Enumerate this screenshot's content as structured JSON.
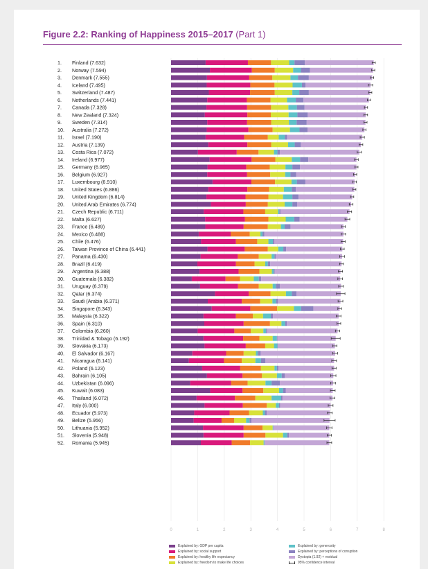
{
  "figure": {
    "title_main": "Figure 2.2: Ranking of Happiness 2015–2017",
    "title_part": "(Part 1)"
  },
  "chart_data": {
    "type": "bar",
    "orientation": "horizontal",
    "stacked": true,
    "xlim": [
      0,
      8
    ],
    "x_ticks": [
      "0",
      "1",
      "2",
      "3",
      "4",
      "5",
      "6",
      "7",
      "8"
    ],
    "grid": true,
    "legend_position": "bottom",
    "components": [
      {
        "name": "Explained by: GDP per capita",
        "color": "#7b3f8c"
      },
      {
        "name": "Explained by: social support",
        "color": "#d9197b"
      },
      {
        "name": "Explained by: healthy life expectancy",
        "color": "#f07b2a"
      },
      {
        "name": "Explained by: freedom to make life choices",
        "color": "#d8e13a"
      },
      {
        "name": "Explained by: generosity",
        "color": "#5ec1c8"
      },
      {
        "name": "Explained by: perceptions of corruption",
        "color": "#8b82c0"
      },
      {
        "name": "Dystopia (1.92) + residual",
        "color": "#c3a6d6"
      }
    ],
    "ci_legend": "95% confidence interval",
    "countries": [
      {
        "rank": "1.",
        "label": "Finland (7.632)",
        "segments": [
          1.3,
          1.59,
          0.87,
          0.68,
          0.2,
          0.39,
          2.59
        ],
        "ci": 0.06
      },
      {
        "rank": "2.",
        "label": "Norway (7.594)",
        "segments": [
          1.46,
          1.58,
          0.86,
          0.69,
          0.29,
          0.34,
          2.38
        ],
        "ci": 0.06
      },
      {
        "rank": "3.",
        "label": "Denmark (7.555)",
        "segments": [
          1.35,
          1.59,
          0.87,
          0.68,
          0.28,
          0.41,
          2.38
        ],
        "ci": 0.06
      },
      {
        "rank": "4.",
        "label": "Iceland (7.495)",
        "segments": [
          1.34,
          1.64,
          0.91,
          0.68,
          0.35,
          0.14,
          2.44
        ],
        "ci": 0.08
      },
      {
        "rank": "5.",
        "label": "Switzerland (7.487)",
        "segments": [
          1.42,
          1.55,
          0.93,
          0.66,
          0.26,
          0.36,
          2.31
        ],
        "ci": 0.06
      },
      {
        "rank": "6.",
        "label": "Netherlands (7.441)",
        "segments": [
          1.36,
          1.49,
          0.89,
          0.62,
          0.33,
          0.29,
          2.46
        ],
        "ci": 0.06
      },
      {
        "rank": "7.",
        "label": "Canada (7.328)",
        "segments": [
          1.33,
          1.53,
          0.9,
          0.65,
          0.32,
          0.29,
          2.31
        ],
        "ci": 0.06
      },
      {
        "rank": "8.",
        "label": "New Zealand (7.324)",
        "segments": [
          1.27,
          1.6,
          0.88,
          0.67,
          0.33,
          0.39,
          2.18
        ],
        "ci": 0.07
      },
      {
        "rank": "9.",
        "label": "Sweden (7.314)",
        "segments": [
          1.36,
          1.5,
          0.91,
          0.66,
          0.29,
          0.38,
          2.21
        ],
        "ci": 0.06
      },
      {
        "rank": "10.",
        "label": "Australia (7.272)",
        "segments": [
          1.34,
          1.57,
          0.91,
          0.65,
          0.36,
          0.3,
          2.14
        ],
        "ci": 0.06
      },
      {
        "rank": "11.",
        "label": "Israel (7.190)",
        "segments": [
          1.3,
          1.45,
          0.89,
          0.41,
          0.23,
          0.08,
          2.83
        ],
        "ci": 0.08
      },
      {
        "rank": "12.",
        "label": "Austria (7.139)",
        "segments": [
          1.4,
          1.47,
          0.9,
          0.63,
          0.25,
          0.23,
          2.26
        ],
        "ci": 0.07
      },
      {
        "rank": "13.",
        "label": "Costa Rica (7.072)",
        "segments": [
          1.01,
          1.46,
          0.82,
          0.58,
          0.13,
          0.09,
          2.99
        ],
        "ci": 0.08
      },
      {
        "rank": "14.",
        "label": "Ireland (6.977)",
        "segments": [
          1.45,
          1.58,
          0.89,
          0.62,
          0.31,
          0.31,
          1.81
        ],
        "ci": 0.07
      },
      {
        "rank": "15.",
        "label": "Germany (6.965)",
        "segments": [
          1.37,
          1.46,
          0.88,
          0.59,
          0.26,
          0.29,
          2.12
        ],
        "ci": 0.06
      },
      {
        "rank": "16.",
        "label": "Belgium (6.927)",
        "segments": [
          1.36,
          1.5,
          0.87,
          0.56,
          0.2,
          0.21,
          2.22
        ],
        "ci": 0.06
      },
      {
        "rank": "17.",
        "label": "Luxembourg (6.910)",
        "segments": [
          1.56,
          1.46,
          0.89,
          0.62,
          0.2,
          0.32,
          1.85
        ],
        "ci": 0.07
      },
      {
        "rank": "18.",
        "label": "United States (6.886)",
        "segments": [
          1.4,
          1.47,
          0.82,
          0.55,
          0.3,
          0.15,
          2.2
        ],
        "ci": 0.06
      },
      {
        "rank": "19.",
        "label": "United Kingdom (6.814)",
        "segments": [
          1.33,
          1.47,
          0.86,
          0.55,
          0.35,
          0.23,
          2.02
        ],
        "ci": 0.06
      },
      {
        "rank": "20.",
        "label": "United Arab Emirates (6.774)",
        "segments": [
          1.5,
          1.31,
          0.83,
          0.63,
          0.29,
          0.18,
          2.03
        ],
        "ci": 0.07
      },
      {
        "rank": "21.",
        "label": "Czech Republic (6.711)",
        "segments": [
          1.23,
          1.49,
          0.82,
          0.48,
          0.05,
          0.05,
          2.59
        ],
        "ci": 0.08
      },
      {
        "rank": "22.",
        "label": "Malta (6.627)",
        "segments": [
          1.28,
          1.5,
          0.88,
          0.65,
          0.32,
          0.2,
          1.8
        ],
        "ci": 0.09
      },
      {
        "rank": "23.",
        "label": "France (6.489)",
        "segments": [
          1.29,
          1.44,
          0.91,
          0.49,
          0.14,
          0.22,
          1.99
        ],
        "ci": 0.07
      },
      {
        "rank": "24.",
        "label": "Mexico (6.488)",
        "segments": [
          1.04,
          1.2,
          0.72,
          0.4,
          0.08,
          0.07,
          2.97
        ],
        "ci": 0.08
      },
      {
        "rank": "25.",
        "label": "Chile (6.476)",
        "segments": [
          1.13,
          1.31,
          0.8,
          0.42,
          0.17,
          0.05,
          2.59
        ],
        "ci": 0.08
      },
      {
        "rank": "26.",
        "label": "Taiwan Province of China (6.441)",
        "segments": [
          1.37,
          1.4,
          0.87,
          0.39,
          0.19,
          0.11,
          2.11
        ],
        "ci": 0.07
      },
      {
        "rank": "27.",
        "label": "Panama (6.430)",
        "segments": [
          1.11,
          1.4,
          0.79,
          0.48,
          0.11,
          0.05,
          2.49
        ],
        "ci": 0.09
      },
      {
        "rank": "28.",
        "label": "Brazil (6.419)",
        "segments": [
          0.99,
          1.45,
          0.7,
          0.4,
          0.1,
          0.09,
          2.68
        ],
        "ci": 0.07
      },
      {
        "rank": "29.",
        "label": "Argentina (6.388)",
        "segments": [
          1.07,
          1.47,
          0.78,
          0.47,
          0.07,
          0.04,
          2.47
        ],
        "ci": 0.08
      },
      {
        "rank": "30.",
        "label": "Guatemala (6.382)",
        "segments": [
          0.78,
          1.27,
          0.54,
          0.52,
          0.19,
          0.09,
          2.97
        ],
        "ci": 0.09
      },
      {
        "rank": "31.",
        "label": "Uruguay (6.379)",
        "segments": [
          1.09,
          1.43,
          0.78,
          0.52,
          0.12,
          0.15,
          2.3
        ],
        "ci": 0.09
      },
      {
        "rank": "32.",
        "label": "Qatar (6.374)",
        "segments": [
          1.65,
          1.27,
          0.82,
          0.58,
          0.22,
          0.18,
          1.66
        ],
        "ci": 0.16
      },
      {
        "rank": "33.",
        "label": "Saudi (Arabia (6.371)",
        "segments": [
          1.38,
          1.28,
          0.69,
          0.46,
          0.14,
          0.07,
          2.35
        ],
        "ci": 0.09
      },
      {
        "rank": "34.",
        "label": "Singapore (6.343)",
        "segments": [
          1.53,
          1.45,
          1.01,
          0.63,
          0.27,
          0.46,
          0.99
        ],
        "ci": 0.07
      },
      {
        "rank": "35.",
        "label": "Malaysia (6.322)",
        "segments": [
          1.22,
          1.22,
          0.64,
          0.38,
          0.29,
          0.08,
          2.47
        ],
        "ci": 0.09
      },
      {
        "rank": "36.",
        "label": "Spain (6.310)",
        "segments": [
          1.25,
          1.48,
          0.99,
          0.43,
          0.14,
          0.06,
          1.96
        ],
        "ci": 0.07
      },
      {
        "rank": "37.",
        "label": "Colombia (6.260)",
        "segments": [
          1.0,
          1.38,
          0.62,
          0.47,
          0.1,
          0.04,
          2.65
        ],
        "ci": 0.08
      },
      {
        "rank": "38.",
        "label": "Trinidad & Tobago (6.192)",
        "segments": [
          1.22,
          1.49,
          0.61,
          0.5,
          0.16,
          0.02,
          2.19
        ],
        "ci": 0.17
      },
      {
        "rank": "39.",
        "label": "Slovakia (6.173)",
        "segments": [
          1.26,
          1.55,
          0.73,
          0.33,
          0.13,
          0.01,
          2.15
        ],
        "ci": 0.08
      },
      {
        "rank": "40.",
        "label": "El Salvador (6.167)",
        "segments": [
          0.8,
          1.27,
          0.66,
          0.46,
          0.07,
          0.11,
          2.8
        ],
        "ci": 0.09
      },
      {
        "rank": "41.",
        "label": "Nicaragua (6.141)",
        "segments": [
          0.67,
          1.32,
          0.67,
          0.51,
          0.21,
          0.17,
          2.58
        ],
        "ci": 0.09
      },
      {
        "rank": "42.",
        "label": "Poland (6.123)",
        "segments": [
          1.17,
          1.43,
          0.78,
          0.51,
          0.09,
          0.06,
          2.09
        ],
        "ci": 0.08
      },
      {
        "rank": "43.",
        "label": "Bahrain (6.105)",
        "segments": [
          1.35,
          1.34,
          0.73,
          0.56,
          0.18,
          0.12,
          1.82
        ],
        "ci": 0.1
      },
      {
        "rank": "44.",
        "label": "Uzbekistan (6.096)",
        "segments": [
          0.72,
          1.54,
          0.62,
          0.67,
          0.23,
          0.31,
          2.0
        ],
        "ci": 0.09
      },
      {
        "rank": "45.",
        "label": "Kuwait (6.083)",
        "segments": [
          1.47,
          1.22,
          0.78,
          0.59,
          0.15,
          0.1,
          1.77
        ],
        "ci": 0.09
      },
      {
        "rank": "46.",
        "label": "Thailand (6.072)",
        "segments": [
          0.96,
          1.44,
          0.77,
          0.61,
          0.36,
          0.05,
          1.88
        ],
        "ci": 0.09
      },
      {
        "rank": "47.",
        "label": "Italy (6.000)",
        "segments": [
          1.26,
          1.44,
          0.9,
          0.34,
          0.12,
          0.04,
          1.9
        ],
        "ci": 0.09
      },
      {
        "rank": "48.",
        "label": "Ecuador (5.973)",
        "segments": [
          0.87,
          1.33,
          0.73,
          0.52,
          0.08,
          0.07,
          2.37
        ],
        "ci": 0.09
      },
      {
        "rank": "49.",
        "label": "Belize (5.956)",
        "segments": [
          0.85,
          1.05,
          0.47,
          0.45,
          0.13,
          0.07,
          2.94
        ],
        "ci": 0.21
      },
      {
        "rank": "50.",
        "label": "Lithuania (5.952)",
        "segments": [
          1.2,
          1.53,
          0.71,
          0.38,
          0.02,
          0.01,
          2.1
        ],
        "ci": 0.1
      },
      {
        "rank": "51.",
        "label": "Slovenia (5.948)",
        "segments": [
          1.22,
          1.51,
          0.82,
          0.66,
          0.16,
          0.06,
          1.52
        ],
        "ci": 0.08
      },
      {
        "rank": "52.",
        "label": "Romania (5.945)",
        "segments": [
          1.12,
          1.16,
          0.69,
          0.51,
          0.03,
          0.01,
          2.43
        ],
        "ci": 0.09
      }
    ]
  }
}
